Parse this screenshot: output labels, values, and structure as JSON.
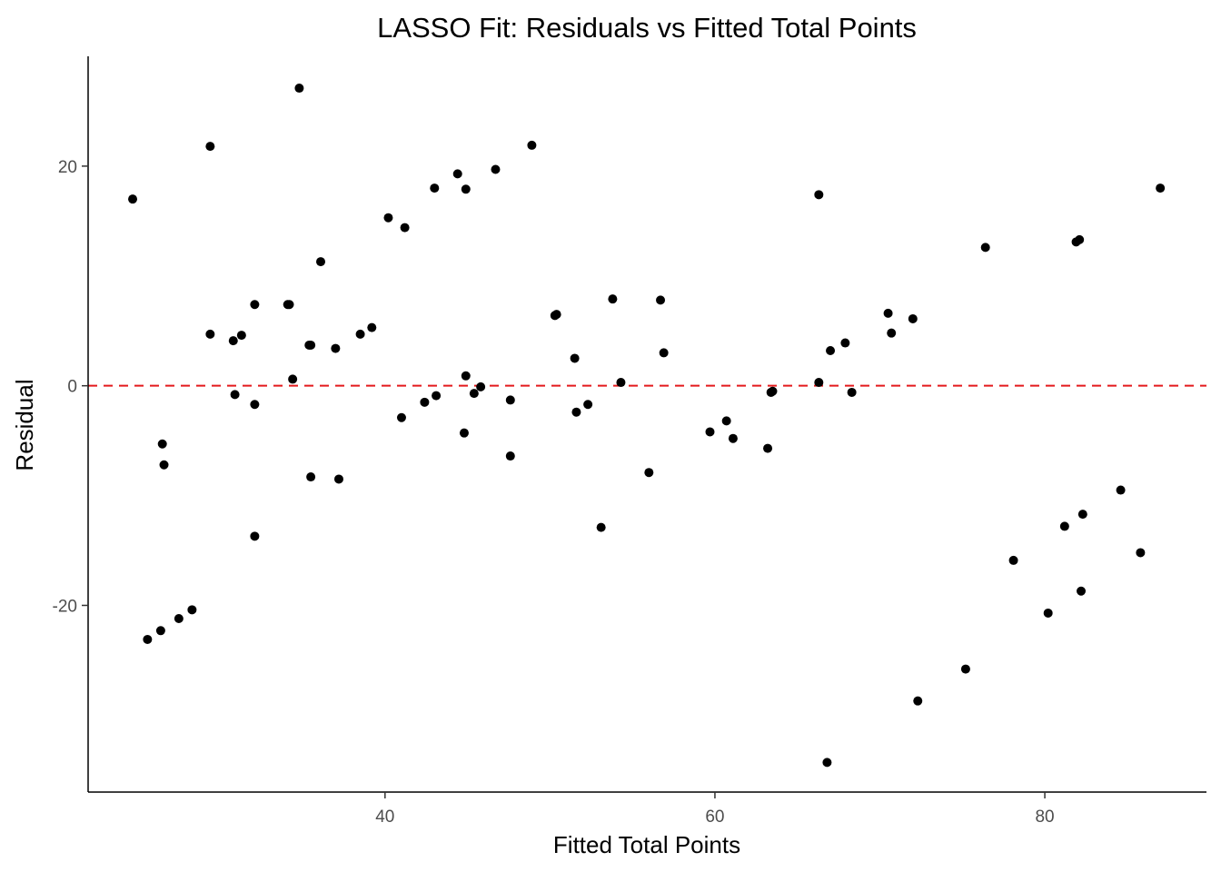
{
  "chart_data": {
    "type": "scatter",
    "title": "LASSO Fit: Residuals vs Fitted Total Points",
    "xlabel": "Fitted Total Points",
    "ylabel": "Residual",
    "xlim": [
      22,
      89.8
    ],
    "ylim": [
      -37,
      30
    ],
    "x_ticks": [
      40,
      60,
      80
    ],
    "x_tick_labels": [
      "40",
      "60",
      "80"
    ],
    "y_ticks": [
      -20,
      0,
      20
    ],
    "y_tick_labels": [
      "-20",
      "0",
      "20"
    ],
    "grid": false,
    "reference_line": {
      "y": 0,
      "style": "dashed",
      "color": "#e41a1c"
    },
    "point_color": "#000000",
    "points": [
      {
        "x": 24.7,
        "y": 17.0
      },
      {
        "x": 25.6,
        "y": -23.1
      },
      {
        "x": 26.4,
        "y": -22.3
      },
      {
        "x": 26.5,
        "y": -5.3
      },
      {
        "x": 26.6,
        "y": -7.2
      },
      {
        "x": 27.5,
        "y": -21.2
      },
      {
        "x": 28.3,
        "y": -20.4
      },
      {
        "x": 29.4,
        "y": 21.8
      },
      {
        "x": 29.4,
        "y": 4.7
      },
      {
        "x": 30.8,
        "y": 4.1
      },
      {
        "x": 30.9,
        "y": -0.8
      },
      {
        "x": 31.3,
        "y": 4.6
      },
      {
        "x": 32.1,
        "y": 7.4
      },
      {
        "x": 32.1,
        "y": -1.7
      },
      {
        "x": 32.1,
        "y": -13.7
      },
      {
        "x": 34.1,
        "y": 7.4
      },
      {
        "x": 34.2,
        "y": 7.4
      },
      {
        "x": 34.4,
        "y": 0.6
      },
      {
        "x": 34.8,
        "y": 27.1
      },
      {
        "x": 35.4,
        "y": 3.7
      },
      {
        "x": 35.5,
        "y": 3.7
      },
      {
        "x": 35.5,
        "y": -8.3
      },
      {
        "x": 36.1,
        "y": 11.3
      },
      {
        "x": 37.0,
        "y": 3.4
      },
      {
        "x": 37.2,
        "y": -8.5
      },
      {
        "x": 38.5,
        "y": 4.7
      },
      {
        "x": 39.2,
        "y": 5.3
      },
      {
        "x": 40.2,
        "y": 15.3
      },
      {
        "x": 41.0,
        "y": -2.9
      },
      {
        "x": 41.2,
        "y": 14.4
      },
      {
        "x": 42.4,
        "y": -1.5
      },
      {
        "x": 43.0,
        "y": 18.0
      },
      {
        "x": 43.1,
        "y": -0.9
      },
      {
        "x": 44.4,
        "y": 19.3
      },
      {
        "x": 44.8,
        "y": -4.3
      },
      {
        "x": 44.9,
        "y": 17.9
      },
      {
        "x": 44.9,
        "y": 0.9
      },
      {
        "x": 45.4,
        "y": -0.7
      },
      {
        "x": 45.8,
        "y": -0.1
      },
      {
        "x": 46.7,
        "y": 19.7
      },
      {
        "x": 47.6,
        "y": -1.3
      },
      {
        "x": 47.6,
        "y": -6.4
      },
      {
        "x": 48.9,
        "y": 21.9
      },
      {
        "x": 50.3,
        "y": 6.4
      },
      {
        "x": 50.4,
        "y": 6.5
      },
      {
        "x": 51.5,
        "y": 2.5
      },
      {
        "x": 51.6,
        "y": -2.4
      },
      {
        "x": 52.3,
        "y": -1.7
      },
      {
        "x": 53.1,
        "y": -12.9
      },
      {
        "x": 53.8,
        "y": 7.9
      },
      {
        "x": 54.3,
        "y": 0.3
      },
      {
        "x": 56.0,
        "y": -7.9
      },
      {
        "x": 56.7,
        "y": 7.8
      },
      {
        "x": 56.9,
        "y": 3.0
      },
      {
        "x": 59.7,
        "y": -4.2
      },
      {
        "x": 60.7,
        "y": -3.2
      },
      {
        "x": 61.1,
        "y": -4.8
      },
      {
        "x": 63.2,
        "y": -5.7
      },
      {
        "x": 63.4,
        "y": -0.6
      },
      {
        "x": 63.5,
        "y": -0.5
      },
      {
        "x": 66.3,
        "y": 17.4
      },
      {
        "x": 66.3,
        "y": 0.3
      },
      {
        "x": 66.8,
        "y": -34.3
      },
      {
        "x": 67.0,
        "y": 3.2
      },
      {
        "x": 67.9,
        "y": 3.9
      },
      {
        "x": 68.3,
        "y": -0.6
      },
      {
        "x": 70.5,
        "y": 6.6
      },
      {
        "x": 70.7,
        "y": 4.8
      },
      {
        "x": 72.0,
        "y": 6.1
      },
      {
        "x": 72.3,
        "y": -28.7
      },
      {
        "x": 75.2,
        "y": -25.8
      },
      {
        "x": 76.4,
        "y": 12.6
      },
      {
        "x": 78.1,
        "y": -15.9
      },
      {
        "x": 80.2,
        "y": -20.7
      },
      {
        "x": 81.2,
        "y": -12.8
      },
      {
        "x": 81.9,
        "y": 13.1
      },
      {
        "x": 82.1,
        "y": 13.3
      },
      {
        "x": 82.2,
        "y": -18.7
      },
      {
        "x": 82.3,
        "y": -11.7
      },
      {
        "x": 84.6,
        "y": -9.5
      },
      {
        "x": 85.8,
        "y": -15.2
      },
      {
        "x": 87.0,
        "y": 18.0
      }
    ]
  }
}
